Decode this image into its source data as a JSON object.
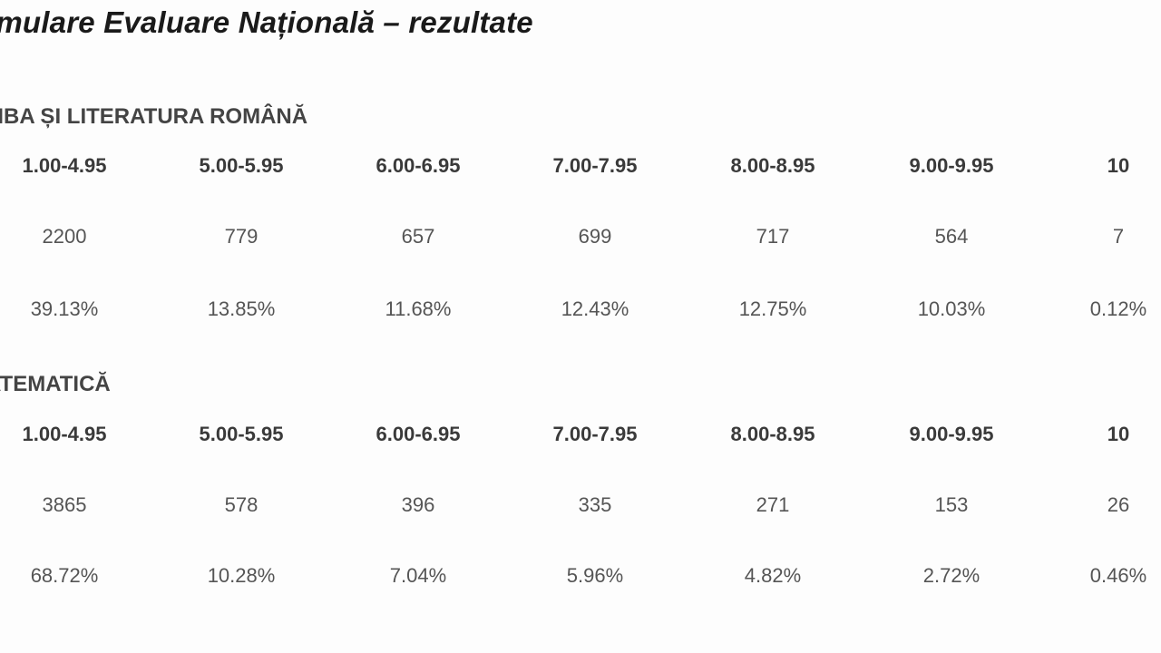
{
  "title": "imulare Evaluare Națională – rezultate",
  "sections": [
    {
      "heading": "MBA ȘI LITERATURA ROMÂNĂ",
      "ranges": [
        "1.00-4.95",
        "5.00-5.95",
        "6.00-6.95",
        "7.00-7.95",
        "8.00-8.95",
        "9.00-9.95",
        "10"
      ],
      "counts": [
        "2200",
        "779",
        "657",
        "699",
        "717",
        "564",
        "7"
      ],
      "percents": [
        "39.13%",
        "13.85%",
        "11.68%",
        "12.43%",
        "12.75%",
        "10.03%",
        "0.12%"
      ]
    },
    {
      "heading": "ATEMATICĂ",
      "ranges": [
        "1.00-4.95",
        "5.00-5.95",
        "6.00-6.95",
        "7.00-7.95",
        "8.00-8.95",
        "9.00-9.95",
        "10"
      ],
      "counts": [
        "3865",
        "578",
        "396",
        "335",
        "271",
        "153",
        "26"
      ],
      "percents": [
        "68.72%",
        "10.28%",
        "7.04%",
        "5.96%",
        "4.82%",
        "2.72%",
        "0.46%"
      ]
    }
  ]
}
